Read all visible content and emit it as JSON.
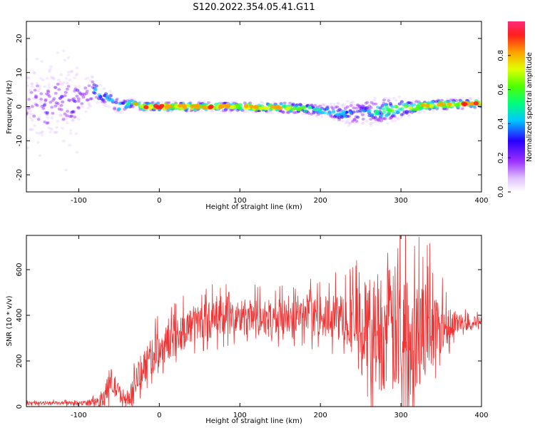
{
  "title": "S120.2022.354.05.41.G11",
  "colors": {
    "snr_line": "#f03232",
    "background": "#ffffff",
    "colormap": [
      "#ffffff",
      "#e6c8ff",
      "#9b30ff",
      "#2800ff",
      "#00c8ff",
      "#00ff7a",
      "#50ff00",
      "#e0ff00",
      "#ffa000",
      "#ff1e1e",
      "#ff2a78"
    ]
  },
  "chart_data": [
    {
      "type": "heatmap",
      "title": "",
      "xlabel": "Height of straight line (km)",
      "ylabel": "Frequency (Hz)",
      "xlim": [
        -165,
        400
      ],
      "ylim": [
        -25,
        25
      ],
      "x_ticks": [
        -100,
        0,
        100,
        200,
        300,
        400
      ],
      "y_ticks": [
        -20,
        -10,
        0,
        10,
        20
      ],
      "colorbar": {
        "label": "Normalized spectral amplitude",
        "range": [
          0,
          1
        ],
        "ticks": [
          "0.0",
          "0.2",
          "0.4",
          "0.6",
          "0.8"
        ]
      },
      "ridge": [
        {
          "x": -165,
          "y": 0
        },
        {
          "x": -100,
          "y": 2
        },
        {
          "x": -90,
          "y": 4
        },
        {
          "x": -80,
          "y": 5
        },
        {
          "x": -70,
          "y": 3
        },
        {
          "x": -60,
          "y": 2
        },
        {
          "x": -50,
          "y": 0
        },
        {
          "x": -35,
          "y": 1
        },
        {
          "x": -20,
          "y": 0
        },
        {
          "x": 0,
          "y": 0
        },
        {
          "x": 100,
          "y": 0
        },
        {
          "x": 180,
          "y": -0.5
        },
        {
          "x": 230,
          "y": -2
        },
        {
          "x": 260,
          "y": -1.5
        },
        {
          "x": 300,
          "y": -0.5
        },
        {
          "x": 340,
          "y": 0.5
        },
        {
          "x": 400,
          "y": 1
        }
      ],
      "strength": [
        {
          "x": -165,
          "v": 0.15
        },
        {
          "x": -100,
          "v": 0.25
        },
        {
          "x": -80,
          "v": 0.45
        },
        {
          "x": -60,
          "v": 0.5
        },
        {
          "x": -40,
          "v": 0.55
        },
        {
          "x": -20,
          "v": 0.95
        },
        {
          "x": 80,
          "v": 0.9
        },
        {
          "x": 150,
          "v": 0.85
        },
        {
          "x": 200,
          "v": 0.55
        },
        {
          "x": 250,
          "v": 0.35
        },
        {
          "x": 300,
          "v": 0.75
        },
        {
          "x": 340,
          "v": 0.85
        },
        {
          "x": 380,
          "v": 0.95
        },
        {
          "x": 400,
          "v": 0.9
        }
      ],
      "spread": [
        {
          "x": -165,
          "v": 10
        },
        {
          "x": -110,
          "v": 10
        },
        {
          "x": -80,
          "v": 4
        },
        {
          "x": -50,
          "v": 2.5
        },
        {
          "x": -30,
          "v": 1.5
        },
        {
          "x": 100,
          "v": 1.5
        },
        {
          "x": 200,
          "v": 2
        },
        {
          "x": 240,
          "v": 4.5
        },
        {
          "x": 280,
          "v": 4.5
        },
        {
          "x": 320,
          "v": 2
        },
        {
          "x": 400,
          "v": 1.5
        }
      ]
    },
    {
      "type": "line",
      "title": "",
      "xlabel": "Height of straight line (km)",
      "ylabel": "SNR (10 * v/v)",
      "xlim": [
        -165,
        400
      ],
      "ylim": [
        0,
        750
      ],
      "x_ticks": [
        -100,
        0,
        100,
        200,
        300,
        400
      ],
      "y_ticks": [
        0,
        200,
        400,
        600
      ],
      "envelope": {
        "x": [
          -165,
          -100,
          -80,
          -70,
          -60,
          -50,
          -40,
          -30,
          -20,
          0,
          20,
          40,
          60,
          100,
          150,
          200,
          230,
          250,
          270,
          290,
          310,
          330,
          350,
          370,
          400
        ],
        "mean": [
          15,
          15,
          20,
          40,
          110,
          60,
          30,
          100,
          180,
          250,
          310,
          360,
          380,
          390,
          390,
          395,
          390,
          360,
          340,
          330,
          330,
          340,
          360,
          370,
          365
        ],
        "amplitude": [
          8,
          8,
          15,
          35,
          60,
          40,
          25,
          60,
          80,
          80,
          80,
          80,
          80,
          80,
          80,
          85,
          110,
          180,
          260,
          290,
          290,
          220,
          120,
          40,
          25
        ]
      }
    }
  ]
}
